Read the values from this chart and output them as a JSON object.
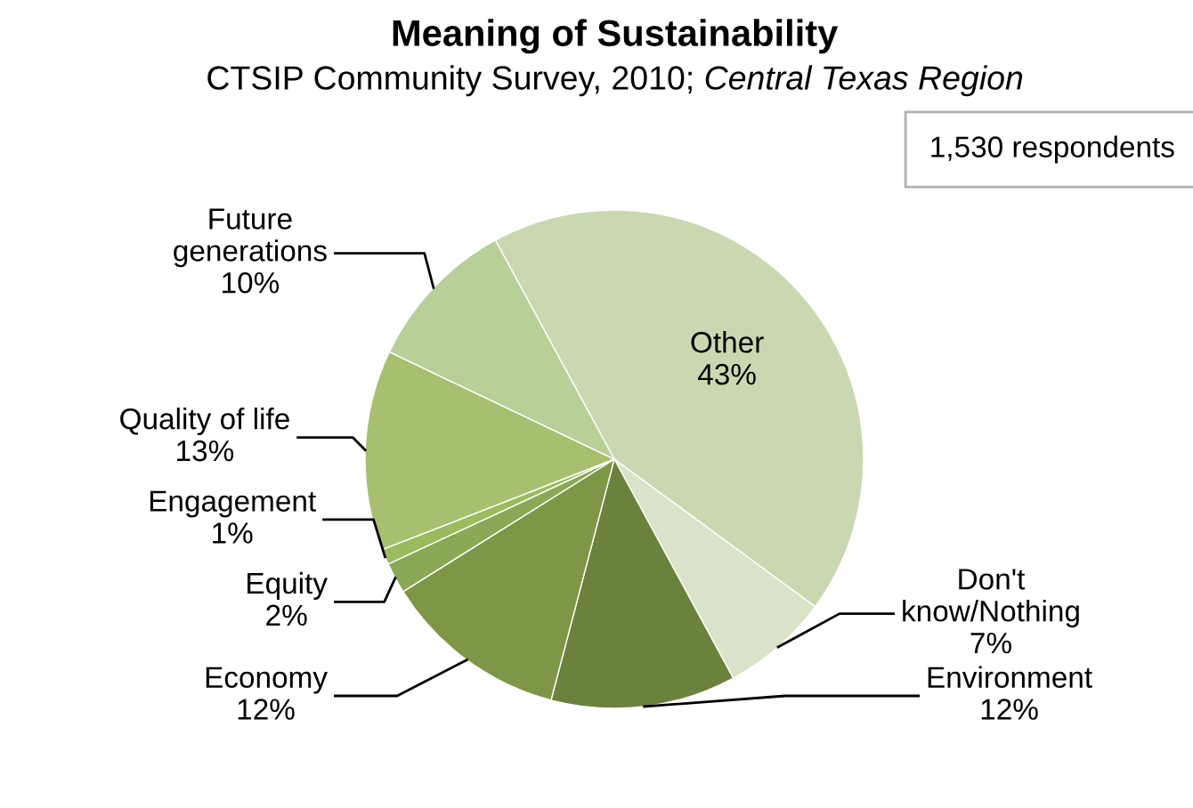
{
  "chart_data": {
    "type": "pie",
    "title": "Meaning of Sustainability",
    "subtitle": "CTSIP Community Survey, 2010; Central Texas Region",
    "categories": [
      "Other",
      "Don't\nknow/Nothing",
      "Environment",
      "Economy",
      "Equity",
      "Engagement",
      "Quality of life",
      "Future\ngenerations"
    ],
    "values": [
      43,
      7,
      12,
      12,
      2,
      1,
      13,
      10
    ],
    "colors": [
      "#c9d8b0",
      "#d9e3c8",
      "#6a823c",
      "#7e9746",
      "#8aa855",
      "#9bbb5e",
      "#a7c070",
      "#b9cf98"
    ],
    "value_labels": [
      "43%",
      "7%",
      "12%",
      "12%",
      "2%",
      "1%",
      "13%",
      "10%"
    ],
    "annotations": [
      "1,530 respondents"
    ],
    "legend": false
  }
}
